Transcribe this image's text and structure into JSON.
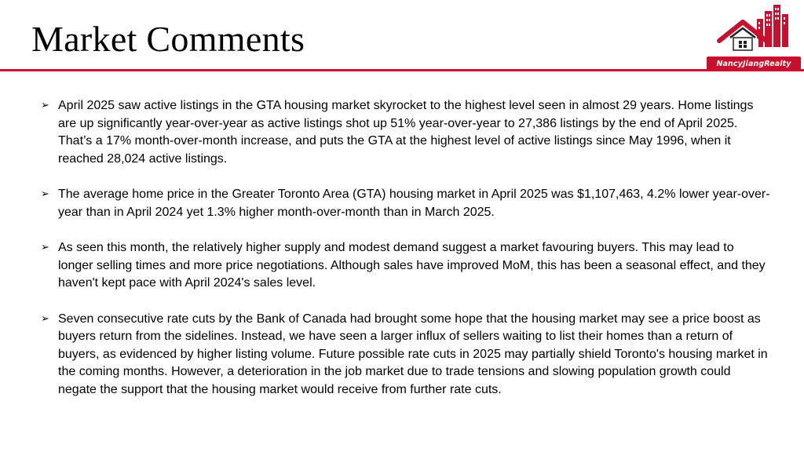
{
  "slide": {
    "title": "Market Comments"
  },
  "logo": {
    "icon": "city-skyline-house-icon",
    "brand_text": "NancyJiangRealty",
    "brand_color": "#c8102e"
  },
  "accent_color": "#c8102e",
  "bullet_icon": "arrow-bullet-icon",
  "comments": [
    {
      "bullet": "➢",
      "text": "April 2025 saw active listings in the GTA housing market skyrocket to the highest level seen in almost 29 years. Home listings are up significantly year-over-year as active listings shot up 51% year-over-year to 27,386 listings by the end of April 2025. That’s a 17% month-over-month increase, and puts the GTA at the highest level of active listings since May 1996, when it reached 28,024 active listings."
    },
    {
      "bullet": "➢",
      "text": "The average home price in the Greater Toronto Area (GTA) housing market in April 2025 was $1,107,463, 4.2% lower year-over-year than in April 2024 yet 1.3% higher month-over-month than in March 2025."
    },
    {
      "bullet": "➢",
      "text": "As seen this month, the relatively higher supply and modest demand suggest a market favouring buyers. This may lead to longer selling times and more price negotiations. Although sales have improved MoM, this has been a seasonal effect, and they haven't kept pace with April 2024's sales level."
    },
    {
      "bullet": "➢",
      "text": "Seven consecutive rate cuts by the Bank of Canada had brought some hope that the housing market may see a price boost as buyers return from the sidelines. Instead, we have seen a larger influx of sellers waiting to list their homes than a return of buyers, as evidenced by higher listing volume. Future possible rate cuts in 2025 may partially shield Toronto's housing market in the coming months. However, a deterioration in the job market due to trade tensions and slowing population growth could negate the support that the housing market would receive from further rate cuts."
    }
  ]
}
